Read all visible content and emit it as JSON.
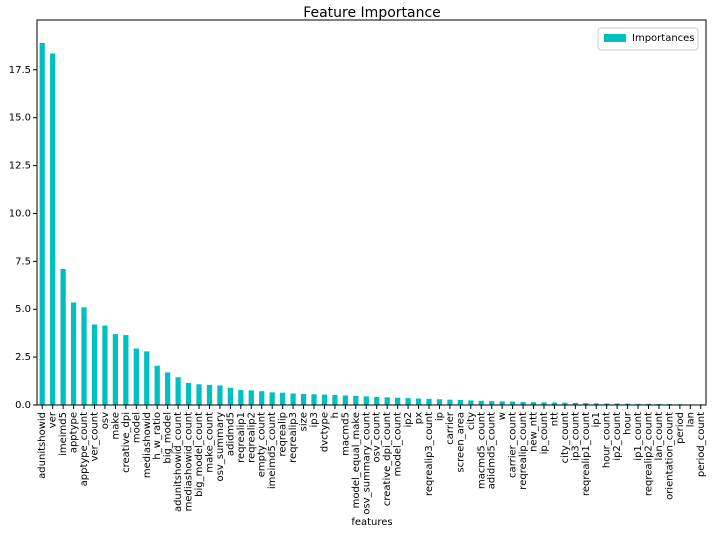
{
  "chart_data": {
    "type": "bar",
    "title": "Feature Importance",
    "x_label": "features",
    "categories": [
      "adunitshowid",
      "ver",
      "imeimd5",
      "apptype",
      "apptype_count",
      "ver_count",
      "osv",
      "make",
      "creative_dpi",
      "model",
      "mediashowid",
      "h_w_ratio",
      "big_model",
      "adunitshowid_count",
      "mediashowid_count",
      "big_model_count",
      "make_count",
      "osv_summary",
      "adidmd5",
      "reqrealip1",
      "reqrealip2",
      "empty_count",
      "imeimd5_count",
      "reqrealip",
      "reqrealip3",
      "size",
      "ip3",
      "dvctype",
      "h",
      "macmd5",
      "model_equal_make",
      "osv_summary_count",
      "osv_count",
      "creative_dpi_count",
      "model_count",
      "ip2",
      "px",
      "reqrealip3_count",
      "ip",
      "carrier",
      "screen_area",
      "city",
      "macmd5_count",
      "adidmd5_count",
      "w",
      "carrier_count",
      "reqrealip_count",
      "new_ntt",
      "ip_count",
      "ntt",
      "city_count",
      "ip3_count",
      "reqrealip1_count",
      "ip1",
      "hour_count",
      "ip2_count",
      "hour",
      "ip1_count",
      "reqrealip2_count",
      "lan_count",
      "orientation_count",
      "period",
      "lan",
      "period_count"
    ],
    "series": [
      {
        "name": "Importances",
        "color": "#00bfbf",
        "values": [
          18.9,
          18.35,
          7.1,
          5.35,
          5.1,
          4.2,
          4.15,
          3.7,
          3.65,
          2.95,
          2.8,
          2.05,
          1.7,
          1.45,
          1.15,
          1.08,
          1.05,
          1.02,
          0.9,
          0.78,
          0.76,
          0.72,
          0.66,
          0.64,
          0.6,
          0.58,
          0.56,
          0.54,
          0.52,
          0.5,
          0.48,
          0.45,
          0.42,
          0.4,
          0.38,
          0.36,
          0.34,
          0.32,
          0.3,
          0.28,
          0.26,
          0.24,
          0.22,
          0.2,
          0.19,
          0.18,
          0.16,
          0.15,
          0.14,
          0.13,
          0.12,
          0.11,
          0.1,
          0.09,
          0.08,
          0.08,
          0.07,
          0.06,
          0.06,
          0.05,
          0.05,
          0.04,
          0.03,
          0.03
        ]
      }
    ],
    "ylim": [
      0,
      20.1
    ],
    "yticks": [
      {
        "value": 0,
        "label": "0.0"
      },
      2.5,
      {
        "value": 5,
        "label": "5.0"
      },
      7.5,
      {
        "value": 10,
        "label": "10.0"
      },
      12.5,
      {
        "value": 15,
        "label": "15.0"
      },
      17.5
    ],
    "legend": "upper right",
    "grid": false
  }
}
